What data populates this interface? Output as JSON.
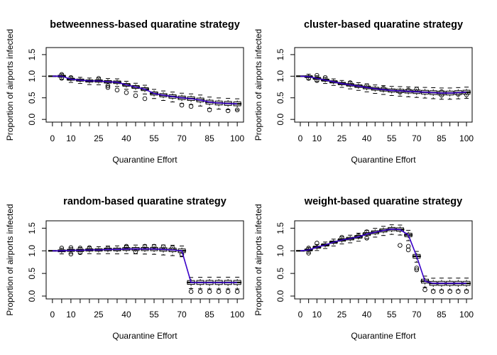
{
  "chart_data": [
    {
      "type": "box",
      "title": "betweenness-based quaratine strategy",
      "xlabel": "Quarantine Effort",
      "ylabel": "Proportion of airports infected",
      "x_tick_labels": [
        "0",
        "10",
        "25",
        "40",
        "55",
        "70",
        "85",
        "100"
      ],
      "y_tick_labels": [
        "0.0",
        "0.5",
        "1.0",
        "1.5"
      ],
      "ylim": [
        0,
        1.6
      ],
      "x": [
        0,
        5,
        10,
        15,
        20,
        25,
        30,
        35,
        40,
        45,
        50,
        55,
        60,
        65,
        70,
        75,
        80,
        85,
        90,
        95,
        100
      ],
      "medians": [
        1.0,
        1.0,
        0.93,
        0.91,
        0.89,
        0.89,
        0.87,
        0.86,
        0.8,
        0.75,
        0.7,
        0.6,
        0.56,
        0.53,
        0.5,
        0.48,
        0.45,
        0.4,
        0.38,
        0.37,
        0.36
      ],
      "outliers": [
        [],
        [
          1.04,
          0.95
        ],
        [
          0.97
        ],
        [],
        [],
        [
          0.95
        ],
        [
          0.78,
          0.74
        ],
        [
          0.68
        ],
        [
          0.62
        ],
        [
          0.55
        ],
        [
          0.48
        ],
        [],
        [],
        [],
        [
          0.33
        ],
        [
          0.3
        ],
        [],
        [
          0.22
        ],
        [],
        [
          0.2
        ],
        [
          0.22
        ]
      ]
    },
    {
      "type": "box",
      "title": "cluster-based quaratine strategy",
      "xlabel": "Quarantine Effort",
      "ylabel": "Proportion of airports infected",
      "x_tick_labels": [
        "0",
        "10",
        "25",
        "40",
        "55",
        "70",
        "85",
        "100"
      ],
      "y_tick_labels": [
        "0.0",
        "0.5",
        "1.0",
        "1.5"
      ],
      "ylim": [
        0,
        1.6
      ],
      "x": [
        0,
        5,
        10,
        15,
        20,
        25,
        30,
        35,
        40,
        45,
        50,
        55,
        60,
        65,
        70,
        75,
        80,
        85,
        90,
        95,
        100
      ],
      "medians": [
        1.0,
        0.99,
        0.95,
        0.91,
        0.87,
        0.83,
        0.8,
        0.77,
        0.74,
        0.71,
        0.69,
        0.67,
        0.66,
        0.65,
        0.64,
        0.63,
        0.62,
        0.61,
        0.61,
        0.62,
        0.63
      ],
      "outliers": [
        [],
        [
          0.95
        ],
        [
          1.02,
          0.9
        ],
        [
          0.97
        ],
        [],
        [],
        [
          0.85
        ],
        [],
        [
          0.78
        ],
        [],
        [
          0.72
        ],
        [],
        [
          0.63
        ],
        [
          0.68
        ],
        [
          0.7
        ],
        [],
        [],
        [
          0.56,
          0.64
        ],
        [],
        [
          0.58
        ],
        [
          0.57
        ]
      ]
    },
    {
      "type": "box",
      "title": "random-based quaratine strategy",
      "xlabel": "Quarantine Effort",
      "ylabel": "Proportion of airports infected",
      "x_tick_labels": [
        "0",
        "10",
        "25",
        "40",
        "55",
        "70",
        "85",
        "100"
      ],
      "y_tick_labels": [
        "0.0",
        "0.5",
        "1.0",
        "1.5"
      ],
      "ylim": [
        0,
        1.6
      ],
      "x": [
        0,
        5,
        10,
        15,
        20,
        25,
        30,
        35,
        40,
        45,
        50,
        55,
        60,
        65,
        70,
        75,
        80,
        85,
        90,
        95,
        100
      ],
      "medians": [
        1.0,
        1.0,
        1.01,
        1.01,
        1.02,
        1.02,
        1.03,
        1.03,
        1.04,
        1.04,
        1.04,
        1.04,
        1.03,
        1.02,
        1.0,
        0.3,
        0.3,
        0.3,
        0.3,
        0.3,
        0.3
      ],
      "outliers": [
        [],
        [
          1.06
        ],
        [
          0.93,
          1.07
        ],
        [
          0.96,
          1.06
        ],
        [
          1.07
        ],
        [],
        [
          1.06
        ],
        [],
        [
          1.08,
          1.1
        ],
        [
          0.98
        ],
        [
          1.1
        ],
        [
          1.1
        ],
        [
          1.09
        ],
        [
          1.07
        ],
        [
          0.92
        ],
        [
          0.1
        ],
        [
          0.1
        ],
        [
          0.1
        ],
        [
          0.1
        ],
        [
          0.1
        ],
        [
          0.1
        ]
      ]
    },
    {
      "type": "box",
      "title": "weight-based quaratine strategy",
      "xlabel": "Quarantine Effort",
      "ylabel": "Proportion of airports infected",
      "x_tick_labels": [
        "0",
        "10",
        "25",
        "40",
        "55",
        "70",
        "85",
        "100"
      ],
      "y_tick_labels": [
        "0.0",
        "0.5",
        "1.0",
        "1.5"
      ],
      "ylim": [
        0,
        1.6
      ],
      "x": [
        0,
        5,
        10,
        15,
        20,
        25,
        30,
        35,
        40,
        45,
        50,
        55,
        60,
        65,
        70,
        75,
        80,
        85,
        90,
        95,
        100
      ],
      "medians": [
        1.0,
        1.02,
        1.08,
        1.13,
        1.19,
        1.24,
        1.27,
        1.31,
        1.37,
        1.41,
        1.45,
        1.48,
        1.47,
        1.35,
        0.88,
        0.33,
        0.28,
        0.28,
        0.28,
        0.28,
        0.28
      ],
      "outliers": [
        [],
        [
          0.95,
          1.06
        ],
        [
          1.17
        ],
        [],
        [],
        [
          1.3
        ],
        [],
        [
          1.33
        ],
        [
          1.42,
          1.28
        ],
        [],
        [],
        [],
        [
          1.12
        ],
        [
          1.1,
          1.02
        ],
        [
          0.62,
          0.58
        ],
        [
          0.14
        ],
        [
          0.1
        ],
        [
          0.1
        ],
        [
          0.1
        ],
        [
          0.1
        ],
        [
          0.1
        ]
      ]
    }
  ]
}
